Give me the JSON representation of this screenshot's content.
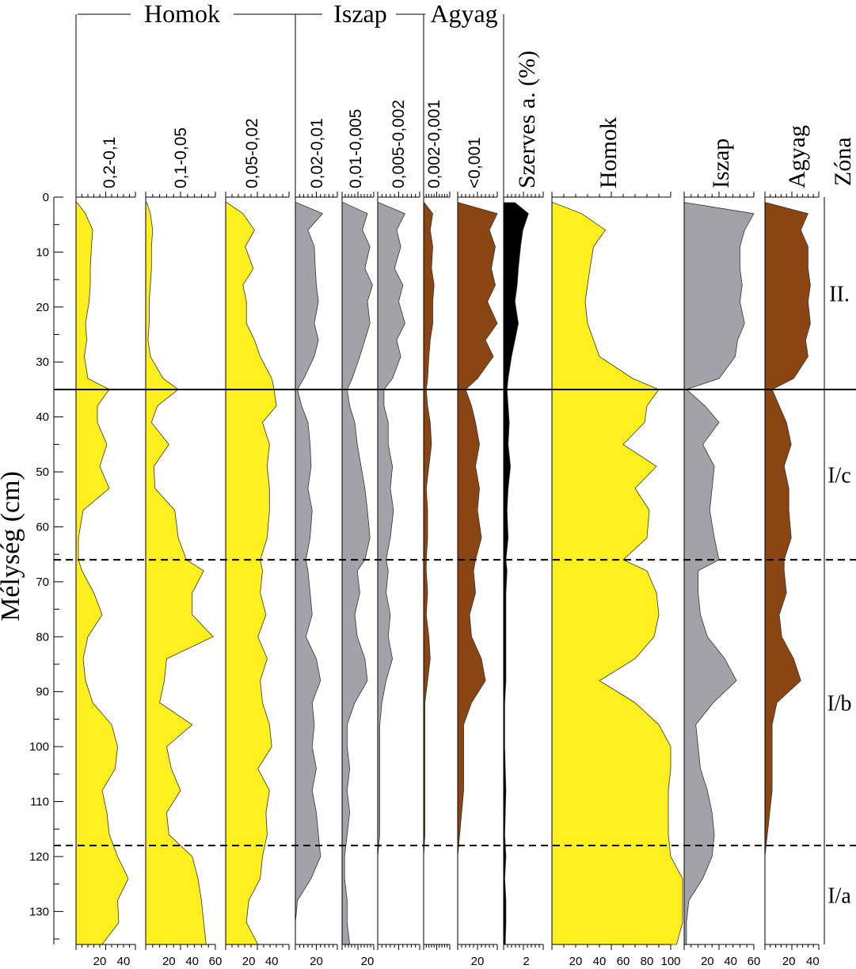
{
  "chart_data": {
    "type": "area",
    "title": "",
    "ylabel": "Mélység (cm)",
    "ylim": [
      0,
      136
    ],
    "yticks": [
      "0",
      "10",
      "20",
      "30",
      "40",
      "50",
      "60",
      "70",
      "80",
      "90",
      "100",
      "110",
      "120",
      "130"
    ],
    "depths": [
      1,
      3,
      6,
      9,
      13,
      16,
      19,
      23,
      26,
      29,
      33,
      35,
      38,
      41,
      45,
      49,
      53,
      57,
      62,
      66,
      68,
      72,
      76,
      80,
      84,
      88,
      92,
      96,
      100,
      104,
      108,
      112,
      116,
      120,
      124,
      128,
      132,
      136
    ],
    "group_headers": [
      "Homok",
      "Iszap",
      "Agyag"
    ],
    "zone_header": "Zóna",
    "zones": [
      {
        "label": "II.",
        "from": 0,
        "to": 35
      },
      {
        "label": "I/c",
        "from": 35,
        "to": 66
      },
      {
        "label": "I/b",
        "from": 66,
        "to": 118
      },
      {
        "label": "I/a",
        "from": 118,
        "to": 136
      }
    ],
    "zone_boundaries": [
      {
        "depth": 35,
        "style": "solid"
      },
      {
        "depth": 66,
        "style": "dashed"
      },
      {
        "depth": 118,
        "style": "dashed"
      }
    ],
    "colors": {
      "sand": "#ffef1c",
      "silt": "#a2a2a8",
      "clay": "#8b4513",
      "organic": "#000000"
    },
    "series": [
      {
        "name": "0,2-0,1",
        "color": "#ffef1c",
        "xmax": 50,
        "xticks": [
          "20",
          "40"
        ],
        "values": [
          1,
          8,
          14,
          13,
          12,
          12,
          11,
          8,
          9,
          7,
          10,
          28,
          18,
          18,
          26,
          20,
          28,
          6,
          2,
          2,
          5,
          15,
          22,
          10,
          6,
          8,
          14,
          30,
          35,
          33,
          22,
          26,
          28,
          35,
          44,
          35,
          36,
          22
        ]
      },
      {
        "name": "0,1-0,05",
        "color": "#ffef1c",
        "xmax": 60,
        "xticks": [
          "20",
          "40",
          "60"
        ],
        "values": [
          1,
          4,
          6,
          5,
          5,
          4,
          3,
          3,
          2,
          4,
          15,
          28,
          10,
          5,
          20,
          7,
          8,
          25,
          28,
          35,
          50,
          40,
          40,
          58,
          18,
          16,
          12,
          40,
          18,
          22,
          30,
          18,
          20,
          40,
          45,
          48,
          50,
          52
        ]
      },
      {
        "name": "0,05-0,02",
        "color": "#ffef1c",
        "xmax": 55,
        "xticks": [
          "20",
          "40"
        ],
        "values": [
          1,
          15,
          25,
          17,
          24,
          15,
          18,
          18,
          25,
          30,
          40,
          42,
          44,
          32,
          38,
          36,
          38,
          38,
          36,
          30,
          32,
          30,
          35,
          28,
          36,
          30,
          32,
          38,
          40,
          28,
          38,
          35,
          36,
          32,
          30,
          20,
          18,
          28
        ]
      },
      {
        "name": "0,02-0,01",
        "color": "#a2a2a8",
        "xmax": 40,
        "xticks": [
          "20"
        ],
        "values": [
          1,
          26,
          12,
          18,
          19,
          20,
          22,
          18,
          22,
          18,
          8,
          2,
          6,
          12,
          14,
          15,
          12,
          16,
          14,
          10,
          12,
          14,
          16,
          10,
          20,
          24,
          16,
          18,
          16,
          20,
          16,
          20,
          22,
          24,
          15,
          2,
          0,
          0
        ]
      },
      {
        "name": "0,01-0,005",
        "color": "#a2a2a8",
        "xmax": 25,
        "xticks": [
          "20"
        ],
        "values": [
          1,
          20,
          16,
          22,
          18,
          24,
          20,
          22,
          18,
          14,
          8,
          4,
          6,
          10,
          12,
          15,
          18,
          20,
          22,
          18,
          12,
          14,
          10,
          12,
          18,
          20,
          10,
          4,
          4,
          6,
          4,
          6,
          4,
          2,
          2,
          4,
          4,
          6
        ]
      },
      {
        "name": "0,005-0,002",
        "color": "#a2a2a8",
        "xmax": 40,
        "xticks": [],
        "values": [
          1,
          26,
          18,
          22,
          16,
          24,
          20,
          26,
          18,
          22,
          14,
          6,
          6,
          10,
          10,
          14,
          12,
          15,
          12,
          8,
          10,
          8,
          12,
          10,
          14,
          8,
          4,
          2,
          2,
          2,
          2,
          2,
          2,
          0,
          0,
          0,
          0,
          0
        ]
      },
      {
        "name": "0,002-0,001",
        "color": "#8b4513",
        "xmax": 40,
        "xticks": [],
        "values": [
          1,
          14,
          10,
          14,
          12,
          16,
          14,
          14,
          10,
          8,
          6,
          4,
          6,
          10,
          12,
          8,
          4,
          6,
          6,
          4,
          4,
          6,
          4,
          8,
          10,
          6,
          2,
          2,
          2,
          2,
          2,
          2,
          2,
          0,
          0,
          0,
          0,
          0
        ]
      },
      {
        "name": "<0,001",
        "color": "#8b4513",
        "xmax": 40,
        "xticks": [
          "20"
        ],
        "values": [
          1,
          40,
          32,
          38,
          34,
          38,
          30,
          40,
          28,
          36,
          20,
          8,
          14,
          18,
          22,
          18,
          22,
          20,
          24,
          18,
          16,
          18,
          12,
          14,
          24,
          28,
          14,
          6,
          6,
          6,
          6,
          4,
          2,
          0,
          0,
          0,
          0,
          0
        ]
      },
      {
        "name": "Szerves a. (%)",
        "color": "#000000",
        "xmax": 3.5,
        "xticks": [
          "2"
        ],
        "values": [
          1,
          2.2,
          1.7,
          1.5,
          1.3,
          1.2,
          1.0,
          1.3,
          1.0,
          0.7,
          0.4,
          0.3,
          0.4,
          0.5,
          0.4,
          0.6,
          0.4,
          0.3,
          0.4,
          0.2,
          0.3,
          0.2,
          0.2,
          0.2,
          0.2,
          0.2,
          0.1,
          0.1,
          0.1,
          0.15,
          0.2,
          0.15,
          0.1,
          0.2,
          0.1,
          0.2,
          0.2,
          0.15
        ]
      },
      {
        "name": "Homok",
        "color": "#ffef1c",
        "xmax": 100,
        "xticks": [
          "20",
          "40",
          "60",
          "80",
          "100"
        ],
        "values": [
          1,
          25,
          45,
          35,
          32,
          30,
          28,
          30,
          35,
          40,
          68,
          90,
          80,
          78,
          60,
          88,
          70,
          82,
          80,
          60,
          80,
          88,
          90,
          86,
          70,
          40,
          70,
          90,
          100,
          100,
          98,
          98,
          98,
          100,
          110,
          110,
          110,
          105
        ]
      },
      {
        "name": "Iszap",
        "color": "#a2a2a8",
        "xmax": 60,
        "xticks": [
          "20",
          "40",
          "60"
        ],
        "values": [
          1,
          60,
          52,
          48,
          48,
          50,
          48,
          52,
          46,
          44,
          30,
          2,
          18,
          30,
          16,
          26,
          24,
          22,
          26,
          30,
          12,
          12,
          14,
          20,
          35,
          45,
          25,
          10,
          12,
          14,
          20,
          24,
          26,
          24,
          16,
          4,
          2,
          2
        ]
      },
      {
        "name": "Agyag",
        "color": "#8b4513",
        "xmax": 45,
        "xticks": [
          "20",
          "40"
        ],
        "values": [
          1,
          36,
          30,
          36,
          36,
          38,
          36,
          38,
          34,
          36,
          24,
          6,
          12,
          18,
          22,
          16,
          20,
          20,
          22,
          16,
          16,
          18,
          12,
          14,
          24,
          30,
          10,
          6,
          6,
          6,
          6,
          4,
          2,
          0,
          0,
          0,
          0,
          0
        ]
      }
    ]
  }
}
